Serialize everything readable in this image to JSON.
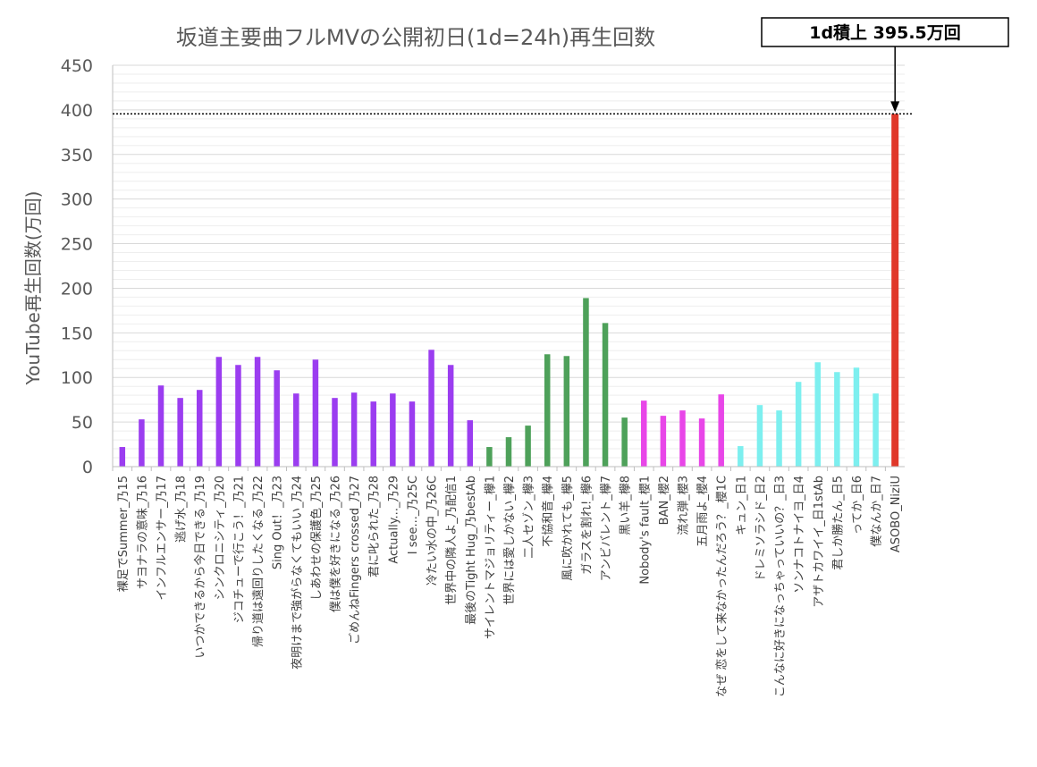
{
  "chart_data": {
    "type": "bar",
    "title": "坂道主要曲フルMVの公開初日(1d=24h)再生回数",
    "ylabel": "YouTube再生回数(万回)",
    "xlabel": "",
    "ylim": [
      0,
      450
    ],
    "y_ticks": [
      "0",
      "50",
      "100",
      "150",
      "200",
      "250",
      "300",
      "350",
      "400",
      "450"
    ],
    "grid": true,
    "reference_line": {
      "value": 395.5,
      "style": "dotted"
    },
    "annotation": "1d積上 395.5万回",
    "group_colors": {
      "乃": "#9B3DF0",
      "欅": "#4EA15A",
      "櫻": "#E846E8",
      "日": "#7DEFEF",
      "NiziU": "#E0382A"
    },
    "categories": [
      "裸足でSummer_乃15",
      "サヨナラの意味_乃16",
      "インフルエンサー_乃17",
      "逃げ水_乃18",
      "いつかできるから今日できる_乃19",
      "シンクロニシティ_乃20",
      "ジコチューで行こう！_乃21",
      "帰り道は遠回りしたくなる_乃22",
      "Sing Out！_乃23",
      "夜明けまで強がらなくてもいい_乃24",
      "しあわせの保護色_乃25",
      "僕は僕を好きになる_乃26",
      "ごめんねFingers crossed_乃27",
      "君に叱られた_乃28",
      "Actually..._乃29",
      "I see..._乃25C",
      "冷たい水の中_乃26C",
      "世界中の隣人よ_乃配信1",
      "最後のTight Hug_乃bestAb",
      "サイレントマジョリティー_欅1",
      "世界には愛しかない_欅2",
      "二人セゾン_欅3",
      "不協和音_欅4",
      "風に吹かれても_欅5",
      "ガラスを割れ!_欅6",
      "アンビバレント_欅7",
      "黒い羊_欅8",
      "Nobody's fault_櫻1",
      "BAN_櫻2",
      "流れ弾_櫻3",
      "五月雨よ_櫻4",
      "なぜ 恋をして来なかったんだろう？_櫻1C",
      "キュン_日1",
      "ドレミソラシド_日2",
      "こんなに好きになっちゃっていいの？_日3",
      "ソンナコトナイヨ_日4",
      "アザトカワイイ_日1stAb",
      "君しか勝たん_日5",
      "ってか_日6",
      "僕なんか_日7",
      "ASOBO_NiziU"
    ],
    "series": [
      {
        "values": [
          22,
          53,
          91,
          77,
          86,
          123,
          114,
          123,
          108,
          82,
          120,
          77,
          83,
          73,
          82,
          73,
          131,
          114,
          52,
          22,
          33,
          46,
          126,
          124,
          189,
          161,
          55,
          74,
          57,
          63,
          54,
          81,
          23,
          69,
          63,
          95,
          117,
          106,
          111,
          82,
          395.5
        ],
        "groups": [
          "乃",
          "乃",
          "乃",
          "乃",
          "乃",
          "乃",
          "乃",
          "乃",
          "乃",
          "乃",
          "乃",
          "乃",
          "乃",
          "乃",
          "乃",
          "乃",
          "乃",
          "乃",
          "乃",
          "欅",
          "欅",
          "欅",
          "欅",
          "欅",
          "欅",
          "欅",
          "欅",
          "櫻",
          "櫻",
          "櫻",
          "櫻",
          "櫻",
          "日",
          "日",
          "日",
          "日",
          "日",
          "日",
          "日",
          "日",
          "NiziU"
        ]
      }
    ]
  }
}
